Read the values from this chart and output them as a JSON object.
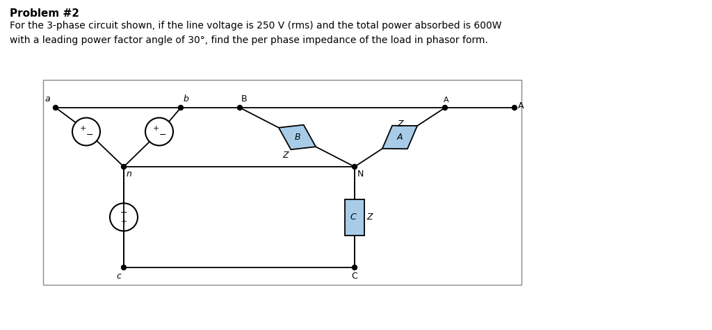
{
  "title_bold": "Problem #2",
  "line1": "For the 3-phase circuit shown, if the line voltage is 250 V (rms) and the total power absorbed is 600W",
  "line2": "with a leading power factor angle of 30°, find the per phase impedance of the load in phasor form.",
  "bg_color": "#ffffff",
  "border_color": "#000000",
  "diamond_fill": "#a8cce8",
  "rect_fill": "#a8cce8",
  "line_color": "#000000",
  "text_color": "#000000",
  "font_size_title": 11,
  "font_size_body": 10,
  "font_size_label": 9,
  "font_size_symbol": 8,
  "circuit_border": "#888888"
}
